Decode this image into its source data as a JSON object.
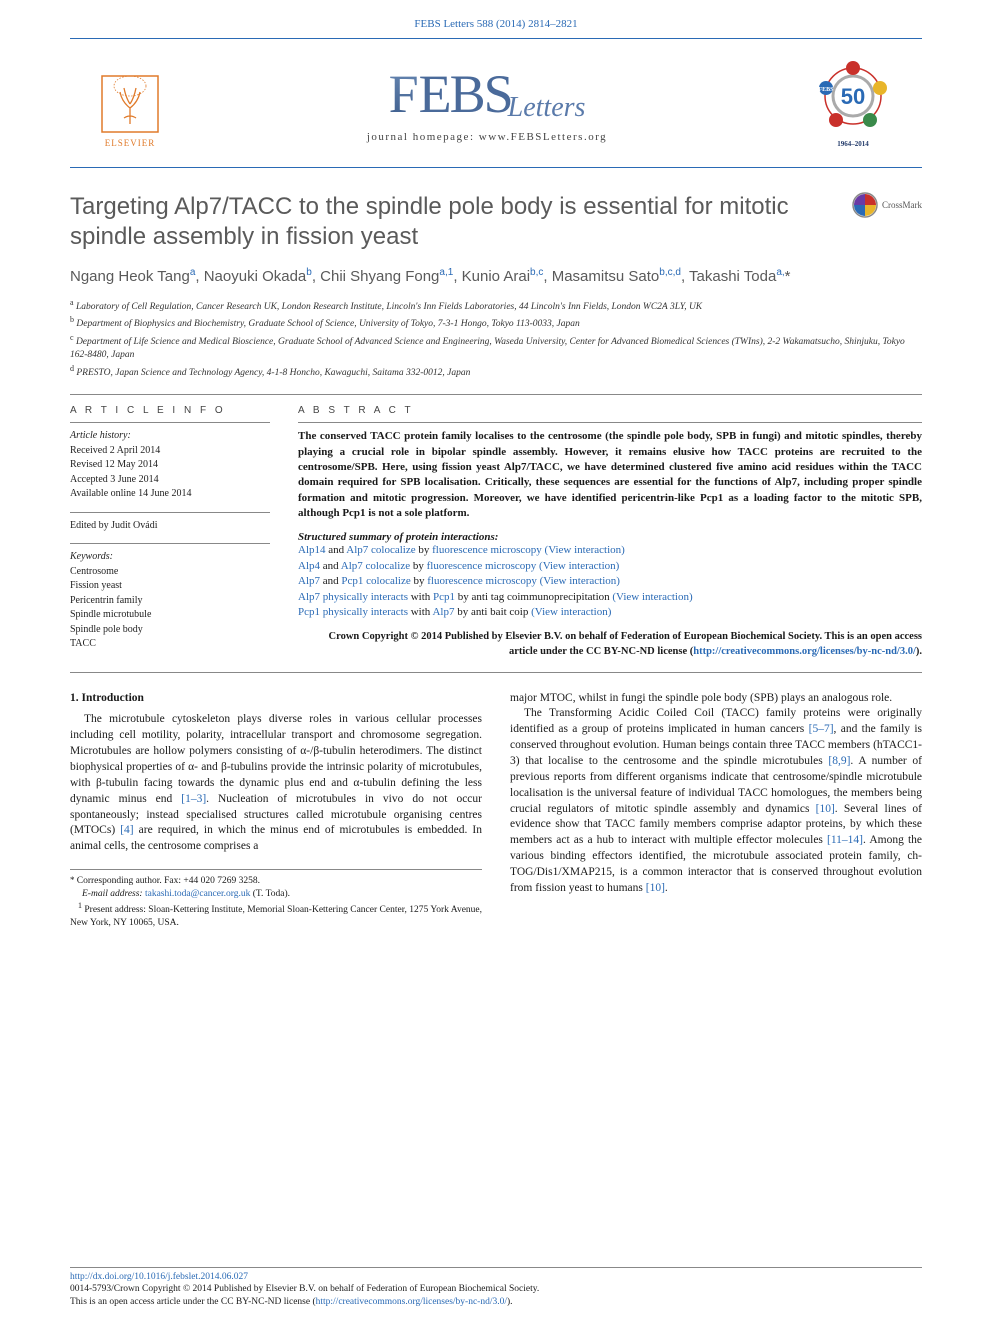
{
  "header_citation": "FEBS Letters 588 (2014) 2814–2821",
  "journal_bar": {
    "elsevier": "ELSEVIER",
    "journal_name_prefix": "F",
    "journal_name_rest": "EBS",
    "journal_subtitle": "Letters",
    "homepage_label": "journal homepage: www.FEBSLetters.org",
    "febs50_years": "1964–2014"
  },
  "crossmark_label": "CrossMark",
  "title": "Targeting Alp7/TACC to the spindle pole body is essential for mitotic spindle assembly in fission yeast",
  "authors_html": "Ngang Heok Tang<sup>a</sup>, Naoyuki Okada<sup>b</sup>, Chii Shyang Fong<sup>a,1</sup>, Kunio Arai<sup>b,c</sup>, Masamitsu Sato<sup>b,c,d</sup>, Takashi Toda<sup>a,</sup>",
  "affiliations": [
    "a Laboratory of Cell Regulation, Cancer Research UK, London Research Institute, Lincoln's Inn Fields Laboratories, 44 Lincoln's Inn Fields, London WC2A 3LY, UK",
    "b Department of Biophysics and Biochemistry, Graduate School of Science, University of Tokyo, 7-3-1 Hongo, Tokyo 113-0033, Japan",
    "c Department of Life Science and Medical Bioscience, Graduate School of Advanced Science and Engineering, Waseda University, Center for Advanced Biomedical Sciences (TWIns), 2-2 Wakamatsucho, Shinjuku, Tokyo 162-8480, Japan",
    "d PRESTO, Japan Science and Technology Agency, 4-1-8 Honcho, Kawaguchi, Saitama 332-0012, Japan"
  ],
  "article_info": {
    "header": "A R T I C L E   I N F O",
    "history_label": "Article history:",
    "history": [
      "Received 2 April 2014",
      "Revised 12 May 2014",
      "Accepted 3 June 2014",
      "Available online 14 June 2014"
    ],
    "edited_by": "Edited by Judit Ovádi",
    "keywords_label": "Keywords:",
    "keywords": [
      "Centrosome",
      "Fission yeast",
      "Pericentrin family",
      "Spindle microtubule",
      "Spindle pole body",
      "TACC"
    ]
  },
  "abstract": {
    "header": "A B S T R A C T",
    "text": "The conserved TACC protein family localises to the centrosome (the spindle pole body, SPB in fungi) and mitotic spindles, thereby playing a crucial role in bipolar spindle assembly. However, it remains elusive how TACC proteins are recruited to the centrosome/SPB. Here, using fission yeast Alp7/TACC, we have determined clustered five amino acid residues within the TACC domain required for SPB localisation. Critically, these sequences are essential for the functions of Alp7, including proper spindle formation and mitotic progression. Moreover, we have identified pericentrin-like Pcp1 as a loading factor to the mitotic SPB, although Pcp1 is not a sole platform.",
    "summary_header": "Structured summary of protein interactions:",
    "summary_items": [
      {
        "a": "Alp14",
        "b": "Alp7",
        "verb": "colocalize by",
        "method": "fluorescence microscopy",
        "link": "(View interaction)"
      },
      {
        "a": "Alp4",
        "b": "Alp7",
        "verb": "colocalize by",
        "method": "fluorescence microscopy",
        "link": "(View interaction)"
      },
      {
        "a": "Alp7",
        "b": "Pcp1",
        "verb": "colocalize by",
        "method": "fluorescence microscopy",
        "link": "(View interaction)"
      },
      {
        "a": "Alp7",
        "b": "Pcp1",
        "verb": "physically interacts with",
        "method": "by anti tag coimmunoprecipitation",
        "link": "(View interaction)"
      },
      {
        "a": "Pcp1",
        "b": "Alp7",
        "verb": "physically interacts with",
        "method": "by anti bait coip",
        "link": "(View interaction)"
      }
    ],
    "copyright": "Crown Copyright © 2014 Published by Elsevier B.V. on behalf of Federation of European Biochemical Society. This is an open access article under the CC BY-NC-ND license (",
    "copyright_link": "http://creativecommons.org/licenses/by-nc-nd/3.0/",
    "copyright_close": ")."
  },
  "body": {
    "section_number": "1.",
    "section_title": "Introduction",
    "col1_p1": "The microtubule cytoskeleton plays diverse roles in various cellular processes including cell motility, polarity, intracellular transport and chromosome segregation. Microtubules are hollow polymers consisting of α-/β-tubulin heterodimers. The distinct biophysical properties of α- and β-tubulins provide the intrinsic polarity of microtubules, with β-tubulin facing towards the dynamic plus end and α-tubulin defining the less dynamic minus end ",
    "col1_cite1": "[1–3]",
    "col1_p1b": ". Nucleation of microtubules in vivo do not occur spontaneously; instead specialised structures called microtubule organising centres (MTOCs) ",
    "col1_cite2": "[4]",
    "col1_p1c": " are required, in which the minus end of microtubules is embedded. In animal cells, the centrosome comprises a",
    "col2_p1": "major MTOC, whilst in fungi the spindle pole body (SPB) plays an analogous role.",
    "col2_p2a": "The Transforming Acidic Coiled Coil (TACC) family proteins were originally identified as a group of proteins implicated in human cancers ",
    "col2_cite1": "[5–7]",
    "col2_p2b": ", and the family is conserved throughout evolution. Human beings contain three TACC members (hTACC1-3) that localise to the centrosome and the spindle microtubules ",
    "col2_cite2": "[8,9]",
    "col2_p2c": ". A number of previous reports from different organisms indicate that centrosome/spindle microtubule localisation is the universal feature of individual TACC homologues, the members being crucial regulators of mitotic spindle assembly and dynamics ",
    "col2_cite3": "[10]",
    "col2_p2d": ". Several lines of evidence show that TACC family members comprise adaptor proteins, by which these members act as a hub to interact with multiple effector molecules ",
    "col2_cite4": "[11–14]",
    "col2_p2e": ". Among the various binding effectors identified, the microtubule associated protein family, ch-TOG/Dis1/XMAP215, is a common interactor that is conserved throughout evolution from fission yeast to humans ",
    "col2_cite5": "[10]",
    "col2_p2f": "."
  },
  "footnotes": {
    "corresponding": "Corresponding author. Fax: +44 020 7269 3258.",
    "email_label": "E-mail address:",
    "email": "takashi.toda@cancer.org.uk",
    "email_name": "(T. Toda).",
    "present_addr": "Present address: Sloan-Kettering Institute, Memorial Sloan-Kettering Cancer Center, 1275 York Avenue, New York, NY 10065, USA."
  },
  "footer": {
    "doi": "http://dx.doi.org/10.1016/j.febslet.2014.06.027",
    "issn_line": "0014-5793/Crown Copyright © 2014 Published by Elsevier B.V. on behalf of Federation of European Biochemical Society.",
    "license_line": "This is an open access article under the CC BY-NC-ND license (",
    "license_link": "http://creativecommons.org/licenses/by-nc-nd/3.0/",
    "license_close": ")."
  },
  "colors": {
    "link": "#2a6ab5",
    "title_gray": "#5a5a5a",
    "elsevier_orange": "#e07a2a",
    "febs_blue": "#3a5a8a",
    "rule": "#888888"
  }
}
